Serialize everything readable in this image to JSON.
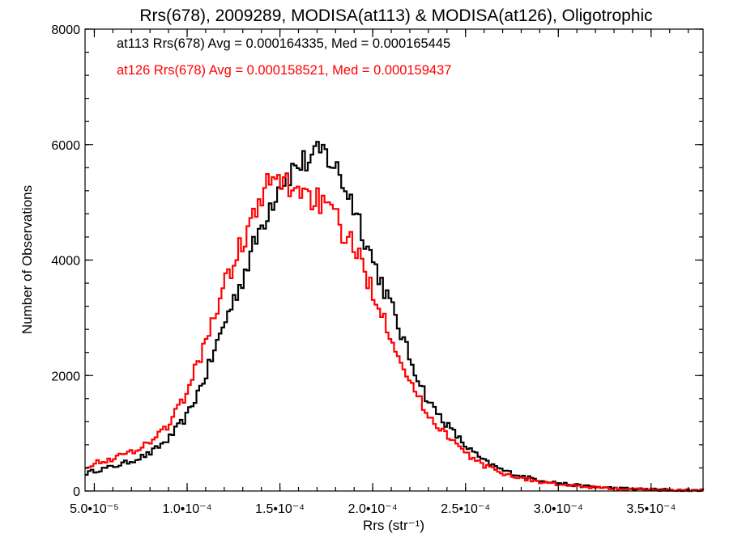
{
  "chart_data": {
    "type": "step",
    "title": "Rrs(678), 2009289, MODISA(at113) & MODISA(at126), Oligotrophic",
    "xlabel": "Rrs (str⁻¹)",
    "ylabel": "Number of Observations",
    "xlim": [
      4.5e-05,
      0.000378
    ],
    "ylim": [
      0,
      8000
    ],
    "x_ticks": [
      {
        "value": 5e-05,
        "label": "5.0•10⁻⁵"
      },
      {
        "value": 0.0001,
        "label": "1.0•10⁻⁴"
      },
      {
        "value": 0.00015,
        "label": "1.5•10⁻⁴"
      },
      {
        "value": 0.0002,
        "label": "2.0•10⁻⁴"
      },
      {
        "value": 0.00025,
        "label": "2.5•10⁻⁴"
      },
      {
        "value": 0.0003,
        "label": "3.0•10⁻⁴"
      },
      {
        "value": 0.00035,
        "label": "3.5•10⁻⁴"
      }
    ],
    "y_ticks": [
      {
        "value": 0,
        "label": "0"
      },
      {
        "value": 2000,
        "label": "2000"
      },
      {
        "value": 4000,
        "label": "4000"
      },
      {
        "value": 6000,
        "label": "6000"
      },
      {
        "value": 8000,
        "label": "8000"
      }
    ],
    "annotations": [
      {
        "text": "at113 Rrs(678) Avg = 0.000164335, Med = 0.000165445",
        "color": "#000000"
      },
      {
        "text": "at126 Rrs(678) Avg = 0.000158521, Med = 0.000159437",
        "color": "#ff0000"
      }
    ],
    "series": [
      {
        "color": "#000000",
        "points": [
          [
            4.5e-05,
            300
          ],
          [
            5e-05,
            350
          ],
          [
            6e-05,
            420
          ],
          [
            7e-05,
            520
          ],
          [
            8e-05,
            650
          ],
          [
            9e-05,
            900
          ],
          [
            0.0001,
            1300
          ],
          [
            0.00011,
            2000
          ],
          [
            0.00012,
            2900
          ],
          [
            0.00013,
            3700
          ],
          [
            0.00014,
            4600
          ],
          [
            0.00015,
            5350
          ],
          [
            0.00016,
            5650
          ],
          [
            0.00017,
            5800
          ],
          [
            0.000173,
            5900
          ],
          [
            0.00018,
            5600
          ],
          [
            0.00019,
            4950
          ],
          [
            0.0002,
            4000
          ],
          [
            0.00021,
            3200
          ],
          [
            0.00022,
            2300
          ],
          [
            0.00023,
            1550
          ],
          [
            0.00024,
            1150
          ],
          [
            0.00025,
            780
          ],
          [
            0.00026,
            520
          ],
          [
            0.00027,
            360
          ],
          [
            0.00028,
            260
          ],
          [
            0.00029,
            190
          ],
          [
            0.0003,
            140
          ],
          [
            0.00031,
            95
          ],
          [
            0.00032,
            70
          ],
          [
            0.00033,
            50
          ],
          [
            0.00034,
            35
          ],
          [
            0.00035,
            25
          ],
          [
            0.00036,
            18
          ],
          [
            0.00037,
            12
          ],
          [
            0.000378,
            8
          ]
        ]
      },
      {
        "color": "#ff0000",
        "points": [
          [
            4.5e-05,
            420
          ],
          [
            5e-05,
            480
          ],
          [
            6e-05,
            560
          ],
          [
            7e-05,
            680
          ],
          [
            8e-05,
            850
          ],
          [
            9e-05,
            1150
          ],
          [
            0.0001,
            1700
          ],
          [
            0.00011,
            2600
          ],
          [
            0.00012,
            3550
          ],
          [
            0.00013,
            4350
          ],
          [
            0.00014,
            5000
          ],
          [
            0.000145,
            5400
          ],
          [
            0.00015,
            5350
          ],
          [
            0.00016,
            5250
          ],
          [
            0.00017,
            5050
          ],
          [
            0.00018,
            4700
          ],
          [
            0.00019,
            4200
          ],
          [
            0.0002,
            3500
          ],
          [
            0.00021,
            2700
          ],
          [
            0.00022,
            1900
          ],
          [
            0.00023,
            1300
          ],
          [
            0.00024,
            980
          ],
          [
            0.00025,
            650
          ],
          [
            0.00026,
            440
          ],
          [
            0.00027,
            310
          ],
          [
            0.00028,
            220
          ],
          [
            0.00029,
            160
          ],
          [
            0.0003,
            115
          ],
          [
            0.00031,
            80
          ],
          [
            0.00032,
            60
          ],
          [
            0.00033,
            42
          ],
          [
            0.00034,
            30
          ],
          [
            0.00035,
            22
          ],
          [
            0.00036,
            15
          ],
          [
            0.00037,
            10
          ],
          [
            0.000378,
            6
          ]
        ]
      }
    ]
  }
}
